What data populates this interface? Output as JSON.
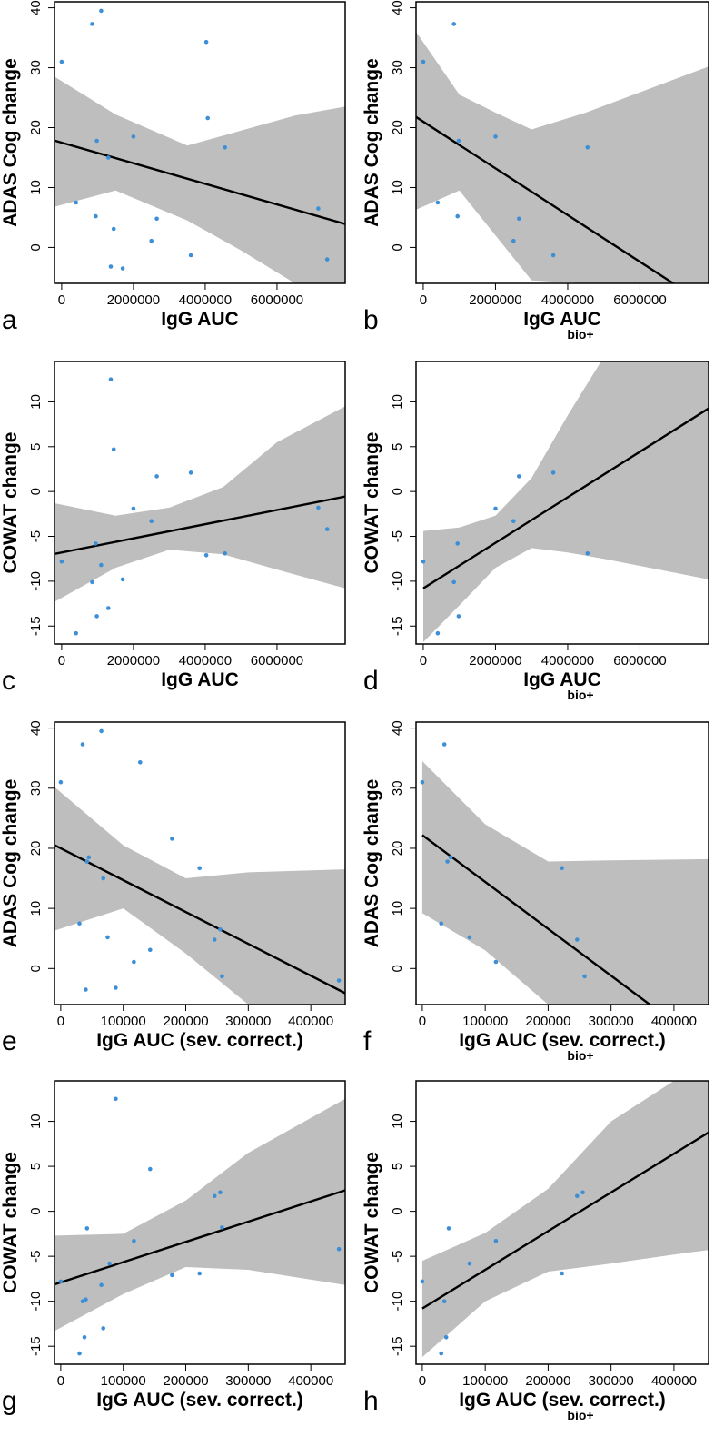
{
  "chart_data": [
    {
      "type": "scatter",
      "panel": "a",
      "xlabel": "IgG AUC",
      "xlabel_sub": "",
      "ylabel": "ADAS Cog change",
      "xlim": [
        -200000,
        7900000
      ],
      "ylim": [
        -6,
        41
      ],
      "xticks": [
        0,
        2000000,
        4000000,
        6000000
      ],
      "xtick_labels": [
        "0",
        "2000000",
        "4000000",
        "6000000"
      ],
      "yticks": [
        0,
        10,
        20,
        30,
        40
      ],
      "points": [
        [
          0,
          31
        ],
        [
          400000,
          7.5
        ],
        [
          850000,
          37.3
        ],
        [
          950000,
          5.2
        ],
        [
          980000,
          17.8
        ],
        [
          1100000,
          39.5
        ],
        [
          1300000,
          15
        ],
        [
          1370000,
          -3.2
        ],
        [
          1450000,
          3.1
        ],
        [
          1700000,
          -3.5
        ],
        [
          2000000,
          18.5
        ],
        [
          2500000,
          1.1
        ],
        [
          2650000,
          4.8
        ],
        [
          3600000,
          -1.3
        ],
        [
          4030000,
          34.3
        ],
        [
          4070000,
          21.6
        ],
        [
          4550000,
          16.7
        ],
        [
          7150000,
          6.5
        ],
        [
          7400000,
          -2
        ]
      ],
      "fit": [
        17.5,
        -1.72e-06
      ],
      "band": [
        [
          -200000,
          6.8,
          28.5
        ],
        [
          1500000,
          9.5,
          22.2
        ],
        [
          3500000,
          4.5,
          17
        ],
        [
          5000000,
          -0.5,
          19.5
        ],
        [
          6500000,
          -6,
          22
        ],
        [
          7900000,
          -6,
          23.5
        ]
      ]
    },
    {
      "type": "scatter",
      "panel": "b",
      "xlabel": "IgG AUC",
      "xlabel_sub": "bio+",
      "ylabel": "ADAS Cog change",
      "xlim": [
        -200000,
        7900000
      ],
      "ylim": [
        -6,
        41
      ],
      "xticks": [
        0,
        2000000,
        4000000,
        6000000
      ],
      "xtick_labels": [
        "0",
        "2000000",
        "4000000",
        "6000000"
      ],
      "yticks": [
        0,
        10,
        20,
        30,
        40
      ],
      "points": [
        [
          0,
          31
        ],
        [
          400000,
          7.5
        ],
        [
          850000,
          37.3
        ],
        [
          950000,
          5.2
        ],
        [
          980000,
          17.8
        ],
        [
          2000000,
          18.5
        ],
        [
          2500000,
          1.1
        ],
        [
          2650000,
          4.8
        ],
        [
          3600000,
          -1.3
        ],
        [
          4550000,
          16.7
        ]
      ],
      "fit": [
        21,
        -3.9e-06
      ],
      "band": [
        [
          -200000,
          6.3,
          36
        ],
        [
          1000000,
          9.5,
          25.5
        ],
        [
          2000000,
          2,
          22.5
        ],
        [
          3000000,
          -5.5,
          19.7
        ],
        [
          4500000,
          -6,
          22.5
        ],
        [
          7900000,
          -6,
          30.2
        ]
      ]
    },
    {
      "type": "scatter",
      "panel": "c",
      "xlabel": "IgG AUC",
      "xlabel_sub": "",
      "ylabel": "COWAT change",
      "xlim": [
        -200000,
        7900000
      ],
      "ylim": [
        -17,
        14.5
      ],
      "xticks": [
        0,
        2000000,
        4000000,
        6000000
      ],
      "xtick_labels": [
        "0",
        "2000000",
        "4000000",
        "6000000"
      ],
      "yticks": [
        -15,
        -10,
        -5,
        0,
        5,
        10
      ],
      "points": [
        [
          0,
          -7.8
        ],
        [
          400000,
          -15.8
        ],
        [
          850000,
          -10.1
        ],
        [
          950000,
          -5.8
        ],
        [
          980000,
          -13.9
        ],
        [
          1100000,
          -8.2
        ],
        [
          1300000,
          -13
        ],
        [
          1370000,
          12.5
        ],
        [
          1450000,
          4.7
        ],
        [
          1700000,
          -9.8
        ],
        [
          2000000,
          -1.9
        ],
        [
          2500000,
          -3.3
        ],
        [
          2650000,
          1.7
        ],
        [
          3600000,
          2.1
        ],
        [
          4030000,
          -7.1
        ],
        [
          4550000,
          -6.9
        ],
        [
          7150000,
          -1.8
        ],
        [
          7400000,
          -4.2
        ]
      ],
      "fit": [
        -6.8,
        7.9e-07
      ],
      "band": [
        [
          -200000,
          -12.3,
          -1.3
        ],
        [
          1500000,
          -8.5,
          -2.7
        ],
        [
          3000000,
          -6.5,
          -1.8
        ],
        [
          4500000,
          -7,
          0.5
        ],
        [
          6000000,
          -8.7,
          5.5
        ],
        [
          7900000,
          -10.8,
          9.5
        ]
      ]
    },
    {
      "type": "scatter",
      "panel": "d",
      "xlabel": "IgG AUC",
      "xlabel_sub": "bio+",
      "ylabel": "COWAT change",
      "xlim": [
        -200000,
        7900000
      ],
      "ylim": [
        -17,
        14.5
      ],
      "xticks": [
        0,
        2000000,
        4000000,
        6000000
      ],
      "xtick_labels": [
        "0",
        "2000000",
        "4000000",
        "6000000"
      ],
      "yticks": [
        -15,
        -10,
        -5,
        0,
        5,
        10
      ],
      "points": [
        [
          0,
          -7.8
        ],
        [
          400000,
          -15.8
        ],
        [
          850000,
          -10.1
        ],
        [
          950000,
          -5.8
        ],
        [
          980000,
          -13.9
        ],
        [
          2000000,
          -1.9
        ],
        [
          2500000,
          -3.3
        ],
        [
          2650000,
          1.7
        ],
        [
          3600000,
          2.1
        ],
        [
          4550000,
          -6.9
        ]
      ],
      "fit": [
        -10.8,
        2.54e-06
      ],
      "band": [
        [
          0,
          -16.8,
          -4.4
        ],
        [
          1000000,
          -12.7,
          -4
        ],
        [
          2000000,
          -8.5,
          -2.7
        ],
        [
          3000000,
          -6.3,
          1.5
        ],
        [
          4000000,
          -6.8,
          8.5
        ],
        [
          5000000,
          -7.5,
          15
        ],
        [
          7900000,
          -9.8,
          15
        ]
      ]
    },
    {
      "type": "scatter",
      "panel": "e",
      "xlabel": "IgG AUC (sev. correct.)",
      "xlabel_sub": "",
      "ylabel": "ADAS Cog change",
      "xlim": [
        -10000,
        455000
      ],
      "ylim": [
        -6,
        41
      ],
      "xticks": [
        0,
        100000,
        200000,
        300000,
        400000
      ],
      "xtick_labels": [
        "0",
        "100000",
        "200000",
        "300000",
        "400000"
      ],
      "yticks": [
        0,
        10,
        20,
        30,
        40
      ],
      "points": [
        [
          0,
          31
        ],
        [
          30000,
          7.5
        ],
        [
          35000,
          37.3
        ],
        [
          40000,
          -3.5
        ],
        [
          42000,
          17.8
        ],
        [
          45000,
          18.5
        ],
        [
          65000,
          39.5
        ],
        [
          68000,
          15
        ],
        [
          75000,
          5.2
        ],
        [
          88000,
          -3.2
        ],
        [
          117000,
          1.1
        ],
        [
          127000,
          34.3
        ],
        [
          143000,
          3.1
        ],
        [
          178000,
          21.6
        ],
        [
          222000,
          16.7
        ],
        [
          246000,
          4.8
        ],
        [
          255000,
          6.5
        ],
        [
          258000,
          -1.3
        ],
        [
          445000,
          -2
        ]
      ],
      "fit": [
        20,
        -5.3e-05
      ],
      "band": [
        [
          -10000,
          6.3,
          30.2
        ],
        [
          100000,
          10,
          20.5
        ],
        [
          200000,
          2.5,
          15
        ],
        [
          300000,
          -6,
          16
        ],
        [
          455000,
          -6,
          16.5
        ]
      ]
    },
    {
      "type": "scatter",
      "panel": "f",
      "xlabel": "IgG AUC (sev. correct.)",
      "xlabel_sub": "bio+",
      "ylabel": "ADAS Cog change",
      "xlim": [
        -10000,
        455000
      ],
      "ylim": [
        -6,
        41
      ],
      "xticks": [
        0,
        100000,
        200000,
        300000,
        400000
      ],
      "xtick_labels": [
        "0",
        "100000",
        "200000",
        "300000",
        "400000"
      ],
      "yticks": [
        0,
        10,
        20,
        30,
        40
      ],
      "points": [
        [
          0,
          31
        ],
        [
          30000,
          7.5
        ],
        [
          35000,
          37.3
        ],
        [
          40000,
          17.8
        ],
        [
          45000,
          18.5
        ],
        [
          75000,
          5.2
        ],
        [
          117000,
          1.1
        ],
        [
          222000,
          16.7
        ],
        [
          246000,
          4.8
        ],
        [
          258000,
          -1.3
        ]
      ],
      "fit": [
        22.2,
        -7.8e-05
      ],
      "band": [
        [
          0,
          9.2,
          34.5
        ],
        [
          100000,
          3,
          24
        ],
        [
          200000,
          -6,
          17.8
        ],
        [
          300000,
          -6,
          18
        ],
        [
          455000,
          -6,
          18.2
        ]
      ]
    },
    {
      "type": "scatter",
      "panel": "g",
      "xlabel": "IgG AUC (sev. correct.)",
      "xlabel_sub": "",
      "ylabel": "COWAT change",
      "xlim": [
        -10000,
        455000
      ],
      "ylim": [
        -17,
        14.5
      ],
      "xticks": [
        0,
        100000,
        200000,
        300000,
        400000
      ],
      "xtick_labels": [
        "0",
        "100000",
        "200000",
        "300000",
        "400000"
      ],
      "yticks": [
        -15,
        -10,
        -5,
        0,
        5,
        10
      ],
      "points": [
        [
          0,
          -7.8
        ],
        [
          30000,
          -15.8
        ],
        [
          35000,
          -10
        ],
        [
          38000,
          -14
        ],
        [
          40000,
          -9.8
        ],
        [
          42000,
          -1.9
        ],
        [
          65000,
          -8.2
        ],
        [
          68000,
          -13
        ],
        [
          78000,
          -5.8
        ],
        [
          88000,
          12.5
        ],
        [
          117000,
          -3.3
        ],
        [
          143000,
          4.7
        ],
        [
          178000,
          -7.1
        ],
        [
          222000,
          -6.9
        ],
        [
          246000,
          1.7
        ],
        [
          255000,
          2.1
        ],
        [
          258000,
          -1.8
        ],
        [
          445000,
          -4.2
        ]
      ],
      "fit": [
        -7.9,
        2.25e-05
      ],
      "band": [
        [
          -10000,
          -13.3,
          -2.7
        ],
        [
          100000,
          -9.2,
          -2.5
        ],
        [
          200000,
          -6.2,
          1.2
        ],
        [
          300000,
          -6.5,
          6.5
        ],
        [
          455000,
          -8.2,
          12.5
        ]
      ]
    },
    {
      "type": "scatter",
      "panel": "h",
      "xlabel": "IgG AUC (sev. correct.)",
      "xlabel_sub": "bio+",
      "ylabel": "COWAT change",
      "xlim": [
        -10000,
        455000
      ],
      "ylim": [
        -17,
        14.5
      ],
      "xticks": [
        0,
        100000,
        200000,
        300000,
        400000
      ],
      "xtick_labels": [
        "0",
        "100000",
        "200000",
        "300000",
        "400000"
      ],
      "yticks": [
        -15,
        -10,
        -5,
        0,
        5,
        10
      ],
      "points": [
        [
          0,
          -7.8
        ],
        [
          30000,
          -15.8
        ],
        [
          35000,
          -10
        ],
        [
          38000,
          -14
        ],
        [
          42000,
          -1.9
        ],
        [
          75000,
          -5.8
        ],
        [
          117000,
          -3.3
        ],
        [
          222000,
          -6.9
        ],
        [
          246000,
          1.7
        ],
        [
          255000,
          2.1
        ]
      ],
      "fit": [
        -10.8,
        4.3e-05
      ],
      "band": [
        [
          0,
          -16.2,
          -5.5
        ],
        [
          100000,
          -10,
          -2.4
        ],
        [
          200000,
          -6.7,
          2.5
        ],
        [
          300000,
          -5.8,
          10
        ],
        [
          400000,
          -4.8,
          14.5
        ],
        [
          455000,
          -4.3,
          14.5
        ]
      ]
    }
  ]
}
